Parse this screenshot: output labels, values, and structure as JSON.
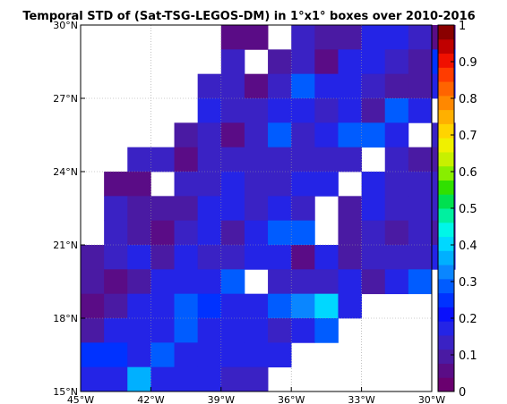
{
  "chart_data": {
    "type": "heatmap",
    "title": "Temporal STD of (Sat-TSG-LEGOS-DM) in 1°x1° boxes over 2010-2016",
    "x_range_lon": [
      -45,
      -30
    ],
    "y_range_lat": [
      15,
      30
    ],
    "cell_size_deg": 1,
    "x_ticks": [
      {
        "lon": -45,
        "label": "45°W"
      },
      {
        "lon": -42,
        "label": "42°W"
      },
      {
        "lon": -39,
        "label": "39°W"
      },
      {
        "lon": -36,
        "label": "36°W"
      },
      {
        "lon": -33,
        "label": "33°W"
      },
      {
        "lon": -30,
        "label": "30°W"
      }
    ],
    "y_ticks": [
      {
        "lat": 15,
        "label": "15°N"
      },
      {
        "lat": 18,
        "label": "18°N"
      },
      {
        "lat": 21,
        "label": "21°N"
      },
      {
        "lat": 24,
        "label": "24°N"
      },
      {
        "lat": 27,
        "label": "27°N"
      },
      {
        "lat": 30,
        "label": "30°N"
      }
    ],
    "grid": true,
    "colorbar": {
      "position": "right",
      "min": 0,
      "max": 1,
      "ticks": [
        "0",
        "0.1",
        "0.2",
        "0.3",
        "0.4",
        "0.5",
        "0.6",
        "0.7",
        "0.8",
        "0.9",
        "1"
      ],
      "colors": [
        "#6a006f",
        "#5a0c86",
        "#4a1aa3",
        "#3a22c4",
        "#2424e6",
        "#0a10fb",
        "#0032ff",
        "#005cff",
        "#0a86ff",
        "#00b0ff",
        "#00d8ff",
        "#00f6e8",
        "#00f0a0",
        "#00e050",
        "#30e000",
        "#88ee00",
        "#c8f000",
        "#f0f000",
        "#ffd400",
        "#ffb000",
        "#ff8800",
        "#ff6400",
        "#ff3c00",
        "#f01000",
        "#c00000",
        "#8a0000"
      ]
    },
    "rows_top_to_bottom_from_lat": 30,
    "row_start_lon": -45,
    "values": [
      [
        null,
        null,
        null,
        null,
        null,
        null,
        0.04,
        0.04,
        null,
        0.13,
        0.11,
        0.11,
        0.17,
        0.17,
        0.13,
        0.04
      ],
      [
        null,
        null,
        null,
        null,
        null,
        null,
        0.12,
        null,
        0.08,
        0.13,
        0.05,
        0.17,
        0.17,
        0.13,
        0.08,
        0.24
      ],
      [
        null,
        null,
        null,
        null,
        null,
        0.12,
        0.12,
        0.05,
        0.15,
        0.27,
        0.17,
        0.17,
        0.13,
        0.08,
        0.11,
        0.17
      ],
      [
        null,
        null,
        null,
        null,
        null,
        0.19,
        0.13,
        0.13,
        0.17,
        0.17,
        0.15,
        0.17,
        0.08,
        0.27,
        0.17,
        null
      ],
      [
        null,
        null,
        null,
        null,
        0.08,
        0.13,
        0.04,
        0.13,
        0.27,
        0.12,
        0.19,
        0.27,
        0.27,
        0.19,
        null,
        0.13
      ],
      [
        null,
        null,
        0.13,
        0.13,
        0.04,
        0.13,
        0.13,
        0.13,
        0.13,
        0.13,
        0.15,
        0.15,
        null,
        0.13,
        0.08,
        0.11
      ],
      [
        null,
        0.05,
        0.05,
        null,
        0.13,
        0.13,
        0.17,
        0.13,
        0.15,
        0.17,
        0.19,
        null,
        0.17,
        0.13,
        0.13,
        0.15
      ],
      [
        null,
        0.12,
        0.09,
        0.09,
        0.09,
        0.17,
        0.17,
        0.15,
        0.17,
        0.13,
        null,
        0.08,
        0.17,
        0.13,
        0.13,
        0.15
      ],
      [
        null,
        0.12,
        0.09,
        0.04,
        0.13,
        0.17,
        0.08,
        0.17,
        0.27,
        0.27,
        null,
        0.09,
        0.13,
        0.08,
        0.12,
        0.08
      ],
      [
        0.08,
        0.12,
        0.17,
        0.09,
        0.17,
        0.13,
        0.15,
        0.17,
        0.17,
        0.05,
        0.17,
        0.09,
        0.13,
        0.12,
        0.13,
        0.17
      ],
      [
        0.08,
        0.05,
        0.11,
        0.17,
        0.17,
        0.17,
        0.27,
        null,
        0.15,
        0.13,
        0.13,
        0.19,
        0.11,
        0.17,
        0.27,
        null
      ],
      [
        0.05,
        0.09,
        0.17,
        0.17,
        0.29,
        0.24,
        0.17,
        0.17,
        0.29,
        0.33,
        0.39,
        0.17,
        null,
        null,
        null,
        null
      ],
      [
        0.08,
        0.17,
        0.17,
        0.17,
        0.29,
        0.17,
        0.17,
        0.17,
        0.15,
        0.17,
        0.29,
        null,
        null,
        null,
        null,
        null
      ],
      [
        0.24,
        0.24,
        0.17,
        0.29,
        0.17,
        0.17,
        0.17,
        0.17,
        0.17,
        null,
        null,
        null,
        null,
        null,
        null,
        null
      ],
      [
        0.17,
        0.17,
        0.37,
        0.17,
        0.17,
        0.17,
        0.13,
        0.13,
        null,
        null,
        null,
        null,
        null,
        null,
        null,
        null
      ]
    ]
  }
}
